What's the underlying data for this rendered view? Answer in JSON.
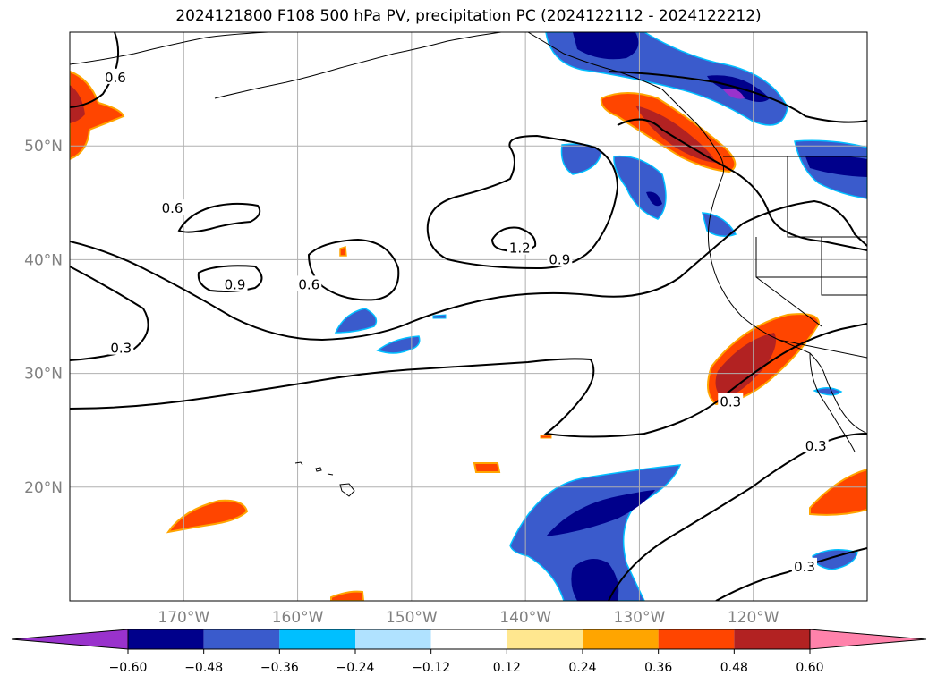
{
  "title": "2024121800 F108 500 hPa PV, precipitation PC (2024122112 - 2024122212)",
  "chart_data": {
    "type": "map-contour",
    "title": "2024121800 F108 500 hPa PV, precipitation PC (2024122112 - 2024122212)",
    "lon_range": [
      -180,
      -110
    ],
    "lat_range": [
      10,
      60
    ],
    "lon_ticks": [
      {
        "value": -170,
        "label": "170°W"
      },
      {
        "value": -160,
        "label": "160°W"
      },
      {
        "value": -150,
        "label": "150°W"
      },
      {
        "value": -140,
        "label": "140°W"
      },
      {
        "value": -130,
        "label": "130°W"
      },
      {
        "value": -120,
        "label": "120°W"
      }
    ],
    "lat_ticks": [
      {
        "value": 20,
        "label": "20°N"
      },
      {
        "value": 30,
        "label": "30°N"
      },
      {
        "value": 40,
        "label": "40°N"
      },
      {
        "value": 50,
        "label": "50°N"
      }
    ],
    "grid": true,
    "colorbar": {
      "orientation": "horizontal",
      "extend": "both",
      "levels": [
        -0.6,
        -0.48,
        -0.36,
        -0.24,
        -0.12,
        0.12,
        0.24,
        0.36,
        0.48,
        0.6
      ],
      "tick_labels": [
        "−0.60",
        "−0.48",
        "−0.36",
        "−0.24",
        "−0.12",
        "0.12",
        "0.24",
        "0.36",
        "0.48",
        "0.60"
      ],
      "colors": [
        "#9932cc",
        "#00008b",
        "#3a5bcc",
        "#00bfff",
        "#b0e2ff",
        "#ffffff",
        "#ffe78f",
        "#ffa500",
        "#ff4500",
        "#b22222",
        "#ff82ab"
      ]
    },
    "contour_labels": [
      {
        "text": "0.6",
        "lon": -176.0,
        "lat": 56.0
      },
      {
        "text": "0.6",
        "lon": -171.0,
        "lat": 44.5
      },
      {
        "text": "0.9",
        "lon": -165.5,
        "lat": 37.8
      },
      {
        "text": "0.6",
        "lon": -159.0,
        "lat": 37.8
      },
      {
        "text": "1.2",
        "lon": -140.5,
        "lat": 41.0
      },
      {
        "text": "0.9",
        "lon": -137.0,
        "lat": 40.0
      },
      {
        "text": "0.3",
        "lon": -175.5,
        "lat": 32.2
      },
      {
        "text": "0.3",
        "lon": -122.0,
        "lat": 27.5
      },
      {
        "text": "0.3",
        "lon": -114.5,
        "lat": 23.6
      },
      {
        "text": "0.3",
        "lon": -115.5,
        "lat": 13.0
      }
    ]
  }
}
